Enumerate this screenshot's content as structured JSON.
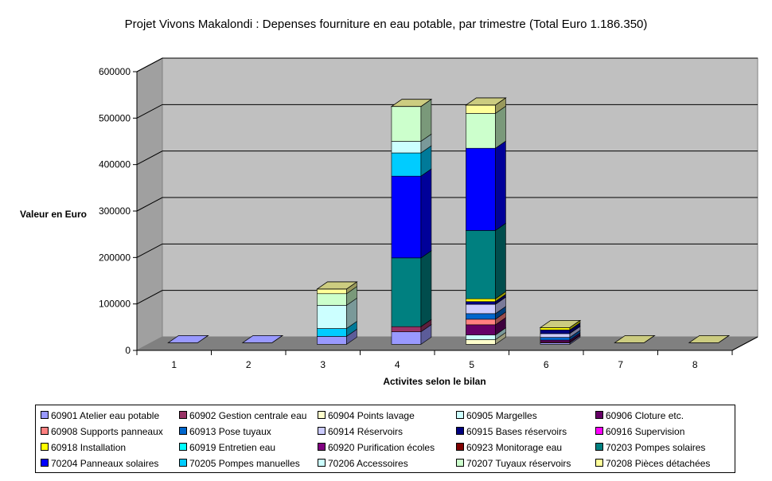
{
  "chart_data": {
    "type": "bar",
    "stacked": true,
    "three_d": true,
    "title": "Projet Vivons Makalondi : Depenses fourniture en eau potable, par trimestre (Total Euro 1.186.350)",
    "xlabel": "Activites selon le bilan",
    "ylabel": "Valeur en Euro",
    "categories": [
      "1",
      "2",
      "3",
      "4",
      "5",
      "6",
      "7",
      "8"
    ],
    "ylim": [
      0,
      600000
    ],
    "yticks": [
      "0",
      "100000",
      "200000",
      "300000",
      "400000",
      "500000",
      "600000"
    ],
    "grid": true,
    "legend_position": "bottom",
    "series": [
      {
        "name": "60901 Atelier eau potable",
        "color": "#9999FF",
        "values": [
          0,
          0,
          0,
          27000,
          0,
          3000,
          0,
          0
        ]
      },
      {
        "name": "60902 Gestion centrale eau",
        "color": "#993366",
        "values": [
          0,
          0,
          0,
          11000,
          0,
          2000,
          0,
          0
        ]
      },
      {
        "name": "60904 Points lavage",
        "color": "#FFFFCC",
        "values": [
          0,
          0,
          0,
          0,
          10000,
          0,
          0,
          0
        ]
      },
      {
        "name": "60905 Margelles",
        "color": "#CCFFFF",
        "values": [
          0,
          0,
          0,
          0,
          10000,
          0,
          0,
          0
        ]
      },
      {
        "name": "60906 Cloture etc.",
        "color": "#660066",
        "values": [
          0,
          0,
          0,
          0,
          22000,
          4000,
          0,
          0
        ]
      },
      {
        "name": "60908 Supports panneaux",
        "color": "#FF8080",
        "values": [
          0,
          0,
          0,
          0,
          12000,
          0,
          0,
          0
        ]
      },
      {
        "name": "60913 Pose tuyaux",
        "color": "#0066CC",
        "values": [
          0,
          0,
          0,
          0,
          12000,
          6000,
          0,
          0
        ]
      },
      {
        "name": "60914 Réservoirs",
        "color": "#CCCCFF",
        "values": [
          0,
          0,
          0,
          0,
          20000,
          8000,
          0,
          0
        ]
      },
      {
        "name": "60915 Bases réservoirs",
        "color": "#000080",
        "values": [
          0,
          0,
          0,
          0,
          6000,
          8000,
          0,
          0
        ]
      },
      {
        "name": "60916 Supervision",
        "color": "#FF00FF",
        "values": [
          0,
          0,
          0,
          0,
          0,
          0,
          0,
          0
        ]
      },
      {
        "name": "60918 Installation",
        "color": "#FFFF00",
        "values": [
          0,
          0,
          0,
          0,
          6000,
          5000,
          0,
          0
        ]
      },
      {
        "name": "60919 Entretien eau",
        "color": "#00FFFF",
        "values": [
          0,
          0,
          0,
          0,
          0,
          0,
          0,
          0
        ]
      },
      {
        "name": "60920 Purification écoles",
        "color": "#800080",
        "values": [
          0,
          0,
          0,
          0,
          0,
          0,
          0,
          0
        ]
      },
      {
        "name": "60923 Monitorage eau",
        "color": "#800000",
        "values": [
          0,
          0,
          0,
          0,
          0,
          0,
          0,
          0
        ]
      },
      {
        "name": "70203 Pompes solaires",
        "color": "#008080",
        "values": [
          0,
          0,
          0,
          148000,
          147000,
          0,
          0,
          0
        ]
      },
      {
        "name": "70204 Panneaux solaires",
        "color": "#0000FF",
        "values": [
          0,
          0,
          0,
          176000,
          177000,
          0,
          0,
          0
        ]
      },
      {
        "name": "70205 Pompes manuelles",
        "color": "#00CCFF",
        "values": [
          0,
          0,
          17000,
          50000,
          0,
          0,
          0,
          0
        ]
      },
      {
        "name": "70206 Accessoires",
        "color": "#CCFFFF",
        "values": [
          0,
          0,
          50000,
          25000,
          0,
          0,
          0,
          0
        ]
      },
      {
        "name": "70207 Tuyaux réservoirs",
        "color": "#CCFFCC",
        "values": [
          0,
          0,
          25000,
          75000,
          75000,
          0,
          0,
          0
        ]
      },
      {
        "name": "70208 Pièces détachées",
        "color": "#FFFF99",
        "values": [
          0,
          0,
          10000,
          0,
          18000,
          0,
          0,
          0
        ]
      }
    ],
    "extra_bottom_segments": [
      {
        "category": "3",
        "series": "60901 Atelier eau potable",
        "value": 17000
      }
    ]
  }
}
